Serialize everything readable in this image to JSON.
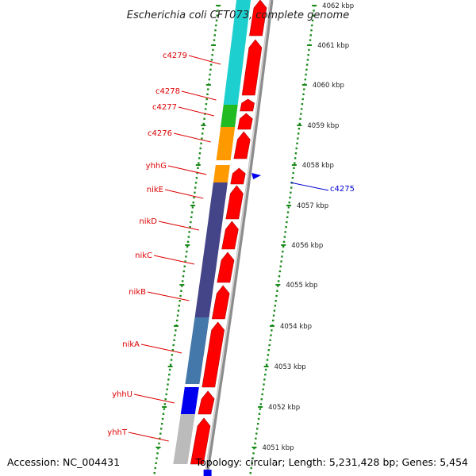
{
  "title": "Escherichia coli CFT073, complete genome",
  "footer": {
    "accession": "Accession: NC_004431",
    "topology": "Topology: circular; Length: 5,231,428 bp; Genes: 5,454"
  },
  "colors": {
    "reverse_label": "#dd0000",
    "forward_label": "#0000cc",
    "forward_arrow": "#ff0000",
    "ruler_dots": "#1a8a1a",
    "backbone": "#8c8c8c"
  },
  "scale": {
    "unit_label": "kbp",
    "ticks": [
      {
        "label": "4062 kbp"
      },
      {
        "label": "4061 kbp"
      },
      {
        "label": "4060 kbp"
      },
      {
        "label": "4059 kbp"
      },
      {
        "label": "4058 kbp"
      },
      {
        "label": "4057 kbp"
      },
      {
        "label": "4056 kbp"
      },
      {
        "label": "4055 kbp"
      },
      {
        "label": "4054 kbp"
      },
      {
        "label": "4053 kbp"
      },
      {
        "label": "4052 kbp"
      },
      {
        "label": "4051 kbp"
      }
    ]
  },
  "genes": [
    {
      "name": "c4279",
      "strand": "reverse",
      "color": "#1ecfcf"
    },
    {
      "name": "c4278",
      "strand": "reverse",
      "color": "#1ecfcf"
    },
    {
      "name": "c4277",
      "strand": "reverse",
      "color": "#22bb22"
    },
    {
      "name": "c4276",
      "strand": "reverse",
      "color": "#ff9900"
    },
    {
      "name": "yhhG",
      "strand": "reverse",
      "color": "#ff9900"
    },
    {
      "name": "nikE",
      "strand": "reverse",
      "color": "#444488"
    },
    {
      "name": "nikD",
      "strand": "reverse",
      "color": "#444488"
    },
    {
      "name": "nikC",
      "strand": "reverse",
      "color": "#444488"
    },
    {
      "name": "nikB",
      "strand": "reverse",
      "color": "#4477aa"
    },
    {
      "name": "nikA",
      "strand": "reverse",
      "color": "#4477aa"
    },
    {
      "name": "yhhU",
      "strand": "reverse",
      "color": "#0000ee"
    },
    {
      "name": "yhhT",
      "strand": "reverse",
      "color": "#bbbbbb"
    },
    {
      "name": "c4275",
      "strand": "forward",
      "color": "#0000ee"
    }
  ]
}
